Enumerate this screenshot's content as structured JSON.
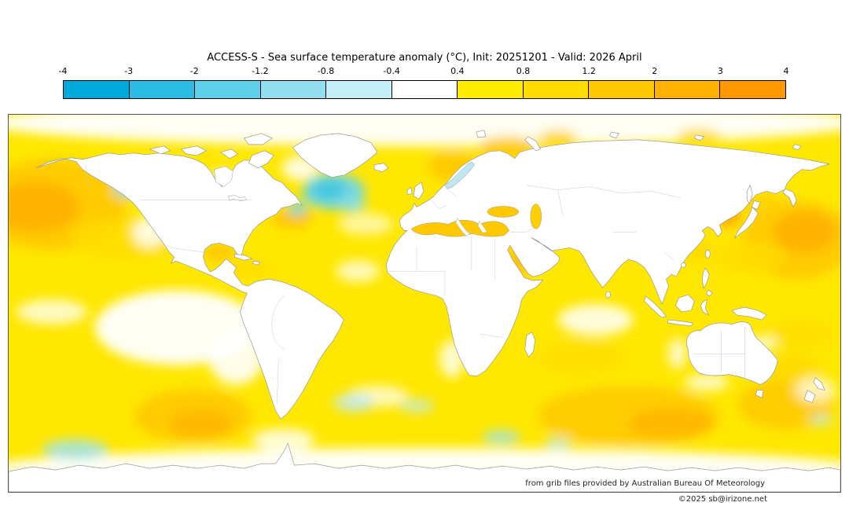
{
  "title": "ACCESS-S - Sea surface temperature anomaly (°C), Init: 20251201 - Valid: 2026 April",
  "colorbar": {
    "ticks": [
      "-4",
      "-3",
      "-2",
      "-1.2",
      "-0.8",
      "-0.4",
      "0.4",
      "0.8",
      "1.2",
      "2",
      "3",
      "4"
    ],
    "colors": [
      "#00AADC",
      "#2BBCE4",
      "#5FD0EA",
      "#93DFEF",
      "#C6EEF6",
      "#FFFFFF",
      "#FFED00",
      "#FFDC00",
      "#FFC800",
      "#FFB000",
      "#FF9700"
    ],
    "units": "°C"
  },
  "map": {
    "ocean_base_color": "#FFE800",
    "land_color": "#FFFFFF",
    "coast_color": "#9A9A9A",
    "frame_color": "#555555"
  },
  "attribution": {
    "source_line": "from grib files provided by Australian Bureau Of Meteorology",
    "copyright_line": "©2025 sb@irizone.net"
  },
  "chart_data": {
    "type": "heatmap",
    "title": "ACCESS-S - Sea surface temperature anomaly (°C), Init: 20251201 - Valid: 2026 April",
    "model": "ACCESS-S",
    "variable": "Sea surface temperature anomaly",
    "units": "°C",
    "init": "20251201",
    "valid": "2026 April",
    "projection": "equirectangular world map, 180W-180E / 90S-90N",
    "scale_ticks": [
      -4,
      -3,
      -2,
      -1.2,
      -0.8,
      -0.4,
      0.4,
      0.8,
      1.2,
      2,
      3,
      4
    ],
    "scale_colors": [
      "#00AADC",
      "#2BBCE4",
      "#5FD0EA",
      "#93DFEF",
      "#C6EEF6",
      "#FFFFFF",
      "#FFED00",
      "#FFDC00",
      "#FFC800",
      "#FFB000",
      "#FF9700"
    ],
    "legend_position": "top",
    "regions": [
      {
        "region": "Most global oceans (background)",
        "anomaly_c": "+0.4 to +0.8"
      },
      {
        "region": "Northeast Pacific (Gulf of Alaska to ~35N)",
        "anomaly_c": "+1.2 to +3"
      },
      {
        "region": "Northwest Pacific east of Japan",
        "anomaly_c": "+1.2 to +3"
      },
      {
        "region": "Sea of Japan",
        "anomaly_c": "+2 to +3"
      },
      {
        "region": "North Atlantic subpolar gyre south of Greenland (cold blob)",
        "anomaly_c": "-0.8 to -2"
      },
      {
        "region": "Small patch off US east coast",
        "anomaly_c": "-0.8 to -1.2"
      },
      {
        "region": "Gulf of Alaska small patch",
        "anomaly_c": "-0.4 to -0.8"
      },
      {
        "region": "Eastern equatorial Pacific / Peru coast",
        "anomaly_c": "-0.4 to +0.4"
      },
      {
        "region": "Gulf of Mexico and Gulf Stream",
        "anomaly_c": "+1.2 to +2"
      },
      {
        "region": "Mediterranean and Black Sea",
        "anomaly_c": "+1.2 to +2"
      },
      {
        "region": "Norwegian / Barents Sea",
        "anomaly_c": "+1.2 to +2"
      },
      {
        "region": "Equatorial Indian Ocean",
        "anomaly_c": "-0.4 to +0.4"
      },
      {
        "region": "Southeast Pacific (~45S west of Chile)",
        "anomaly_c": "+1.2 to +2"
      },
      {
        "region": "Southern Indian Ocean (40S-55S)",
        "anomaly_c": "+1.2 to +2"
      },
      {
        "region": "Southwest Pacific / Tasman Sea",
        "anomaly_c": "+0.8 to +2"
      },
      {
        "region": "Circumpolar band near Antarctica",
        "anomaly_c": "-0.4 to +0.4 with scattered -0.4 to -1.2 patches"
      },
      {
        "region": "Baltic Sea",
        "anomaly_c": "-0.4 to -0.8"
      }
    ]
  }
}
